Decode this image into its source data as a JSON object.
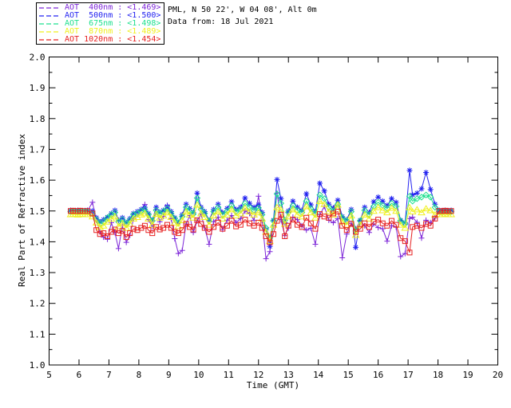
{
  "header": {
    "line1": "PML, N 50 22', W 04 08', Alt 0m",
    "line2": "Data from: 18 Jul 2021"
  },
  "colors": {
    "axis": "#000000",
    "background": "#ffffff",
    "aot400": "#7d26d8",
    "aot500": "#2323f0",
    "aot675": "#1fe08f",
    "aot870": "#f0f01e",
    "aot1020": "#e62020"
  },
  "chart_data": {
    "type": "line",
    "title": "",
    "xlabel": "Time (GMT)",
    "ylabel": "Real Part of Refractive index",
    "xlim": [
      5,
      20
    ],
    "ylim": [
      1.0,
      2.0
    ],
    "x_tick_labels": [
      "5",
      "6",
      "7",
      "8",
      "9",
      "10",
      "11",
      "12",
      "13",
      "14",
      "15",
      "16",
      "17",
      "18",
      "19",
      "20"
    ],
    "x_ticks": [
      5,
      6,
      7,
      8,
      9,
      10,
      11,
      12,
      13,
      14,
      15,
      16,
      17,
      18,
      19,
      20
    ],
    "y_tick_labels": [
      "1.0",
      "1.1",
      "1.2",
      "1.3",
      "1.4",
      "1.5",
      "1.6",
      "1.7",
      "1.8",
      "1.9",
      "2.0"
    ],
    "y_ticks": [
      1.0,
      1.1,
      1.2,
      1.3,
      1.4,
      1.5,
      1.6,
      1.7,
      1.8,
      1.9,
      2.0
    ],
    "y_minor_step": 0.05,
    "grid": false,
    "legend_position": "top-left-outside",
    "x_name": "time_gmt_hours",
    "t": [
      5.72,
      5.8,
      5.88,
      5.96,
      6.04,
      6.12,
      6.2,
      6.28,
      6.45,
      6.58,
      6.7,
      6.82,
      6.95,
      7.08,
      7.2,
      7.32,
      7.45,
      7.58,
      7.7,
      7.82,
      7.95,
      8.08,
      8.2,
      8.32,
      8.45,
      8.58,
      8.7,
      8.82,
      8.95,
      9.08,
      9.2,
      9.32,
      9.45,
      9.58,
      9.7,
      9.82,
      9.95,
      10.08,
      10.2,
      10.35,
      10.5,
      10.65,
      10.8,
      10.95,
      11.1,
      11.25,
      11.4,
      11.55,
      11.7,
      11.85,
      12.0,
      12.12,
      12.25,
      12.38,
      12.5,
      12.62,
      12.75,
      12.88,
      13.0,
      13.15,
      13.3,
      13.45,
      13.6,
      13.75,
      13.9,
      14.05,
      14.2,
      14.35,
      14.5,
      14.65,
      14.8,
      14.95,
      15.1,
      15.25,
      15.4,
      15.55,
      15.7,
      15.85,
      16.0,
      16.15,
      16.3,
      16.45,
      16.6,
      16.75,
      16.9,
      17.05,
      17.15,
      17.3,
      17.45,
      17.6,
      17.75,
      17.9,
      18.04,
      18.14,
      18.24,
      18.34,
      18.44
    ],
    "series": [
      {
        "name": "AOT 400nm",
        "legend_label": "AOT  400nm : <1.469>",
        "mean_refractive_index": "1.469",
        "color": "#7d26d8",
        "marker": "plus",
        "values": [
          1.5,
          1.5,
          1.501,
          1.499,
          1.5,
          1.5,
          1.499,
          1.5,
          1.528,
          1.47,
          1.432,
          1.415,
          1.408,
          1.462,
          1.43,
          1.378,
          1.452,
          1.398,
          1.421,
          1.475,
          1.488,
          1.505,
          1.521,
          1.472,
          1.448,
          1.505,
          1.465,
          1.483,
          1.518,
          1.475,
          1.41,
          1.362,
          1.372,
          1.458,
          1.485,
          1.43,
          1.468,
          1.49,
          1.445,
          1.392,
          1.465,
          1.48,
          1.44,
          1.47,
          1.485,
          1.462,
          1.475,
          1.5,
          1.492,
          1.47,
          1.548,
          1.47,
          1.345,
          1.368,
          1.452,
          1.558,
          1.472,
          1.42,
          1.445,
          1.48,
          1.472,
          1.452,
          1.438,
          1.444,
          1.392,
          1.488,
          1.515,
          1.47,
          1.462,
          1.475,
          1.348,
          1.425,
          1.46,
          1.442,
          1.468,
          1.452,
          1.43,
          1.458,
          1.446,
          1.442,
          1.402,
          1.452,
          1.448,
          1.352,
          1.362,
          1.475,
          1.48,
          1.463,
          1.412,
          1.47,
          1.462,
          1.478,
          1.5,
          1.5,
          1.5,
          1.5,
          1.5
        ]
      },
      {
        "name": "AOT 500nm",
        "legend_label": "AOT  500nm : <1.500>",
        "mean_refractive_index": "1.500",
        "color": "#2323f0",
        "marker": "asterisk",
        "values": [
          1.502,
          1.501,
          1.5,
          1.502,
          1.501,
          1.5,
          1.501,
          1.502,
          1.5,
          1.478,
          1.465,
          1.472,
          1.48,
          1.492,
          1.502,
          1.47,
          1.478,
          1.462,
          1.475,
          1.492,
          1.498,
          1.505,
          1.512,
          1.492,
          1.47,
          1.512,
          1.496,
          1.502,
          1.515,
          1.498,
          1.478,
          1.462,
          1.488,
          1.522,
          1.508,
          1.495,
          1.558,
          1.512,
          1.498,
          1.47,
          1.505,
          1.522,
          1.495,
          1.508,
          1.53,
          1.505,
          1.512,
          1.542,
          1.525,
          1.512,
          1.52,
          1.495,
          1.44,
          1.385,
          1.47,
          1.602,
          1.54,
          1.462,
          1.5,
          1.532,
          1.512,
          1.502,
          1.556,
          1.52,
          1.498,
          1.59,
          1.565,
          1.522,
          1.51,
          1.535,
          1.482,
          1.472,
          1.505,
          1.382,
          1.47,
          1.512,
          1.495,
          1.53,
          1.545,
          1.532,
          1.518,
          1.54,
          1.528,
          1.47,
          1.462,
          1.632,
          1.552,
          1.558,
          1.572,
          1.625,
          1.57,
          1.522,
          1.502,
          1.501,
          1.502,
          1.501,
          1.502
        ]
      },
      {
        "name": "AOT 675nm",
        "legend_label": "AOT  675nm : <1.498>",
        "mean_refractive_index": "1.498",
        "color": "#1fe08f",
        "marker": "diamond",
        "values": [
          1.498,
          1.499,
          1.498,
          1.497,
          1.498,
          1.499,
          1.498,
          1.498,
          1.492,
          1.472,
          1.458,
          1.465,
          1.478,
          1.488,
          1.495,
          1.465,
          1.472,
          1.458,
          1.47,
          1.488,
          1.492,
          1.5,
          1.505,
          1.488,
          1.468,
          1.502,
          1.49,
          1.498,
          1.508,
          1.492,
          1.475,
          1.462,
          1.482,
          1.512,
          1.5,
          1.49,
          1.542,
          1.505,
          1.492,
          1.468,
          1.498,
          1.512,
          1.488,
          1.5,
          1.518,
          1.498,
          1.505,
          1.525,
          1.512,
          1.502,
          1.51,
          1.488,
          1.445,
          1.412,
          1.468,
          1.555,
          1.525,
          1.47,
          1.495,
          1.518,
          1.502,
          1.495,
          1.532,
          1.508,
          1.492,
          1.552,
          1.54,
          1.512,
          1.5,
          1.522,
          1.478,
          1.468,
          1.498,
          1.435,
          1.468,
          1.502,
          1.488,
          1.515,
          1.528,
          1.518,
          1.508,
          1.525,
          1.515,
          1.468,
          1.458,
          1.548,
          1.532,
          1.54,
          1.545,
          1.552,
          1.545,
          1.512,
          1.498,
          1.498,
          1.499,
          1.498,
          1.498
        ]
      },
      {
        "name": "AOT 870nm",
        "legend_label": "AOT  870nm : <1.489>",
        "mean_refractive_index": "1.489",
        "color": "#f0f01e",
        "marker": "triangle",
        "values": [
          1.489,
          1.49,
          1.489,
          1.488,
          1.489,
          1.49,
          1.489,
          1.489,
          1.482,
          1.462,
          1.448,
          1.452,
          1.465,
          1.475,
          1.482,
          1.45,
          1.46,
          1.445,
          1.458,
          1.475,
          1.48,
          1.488,
          1.492,
          1.475,
          1.455,
          1.49,
          1.478,
          1.485,
          1.495,
          1.48,
          1.462,
          1.45,
          1.47,
          1.498,
          1.488,
          1.478,
          1.52,
          1.492,
          1.48,
          1.455,
          1.485,
          1.498,
          1.475,
          1.488,
          1.505,
          1.485,
          1.492,
          1.51,
          1.498,
          1.488,
          1.495,
          1.475,
          1.432,
          1.402,
          1.455,
          1.512,
          1.505,
          1.458,
          1.482,
          1.505,
          1.488,
          1.482,
          1.515,
          1.495,
          1.478,
          1.532,
          1.522,
          1.498,
          1.488,
          1.52,
          1.465,
          1.455,
          1.485,
          1.422,
          1.455,
          1.488,
          1.475,
          1.5,
          1.512,
          1.502,
          1.495,
          1.51,
          1.5,
          1.455,
          1.445,
          1.512,
          1.498,
          1.505,
          1.495,
          1.508,
          1.502,
          1.488,
          1.489,
          1.489,
          1.49,
          1.489,
          1.489
        ]
      },
      {
        "name": "AOT 1020nm",
        "legend_label": "AOT 1020nm : <1.454>",
        "mean_refractive_index": "1.454",
        "color": "#e62020",
        "marker": "square",
        "values": [
          1.5,
          1.501,
          1.5,
          1.5,
          1.501,
          1.5,
          1.5,
          1.5,
          1.492,
          1.438,
          1.425,
          1.428,
          1.418,
          1.432,
          1.44,
          1.428,
          1.435,
          1.415,
          1.428,
          1.442,
          1.438,
          1.445,
          1.452,
          1.438,
          1.428,
          1.448,
          1.44,
          1.445,
          1.455,
          1.445,
          1.432,
          1.428,
          1.438,
          1.458,
          1.448,
          1.44,
          1.47,
          1.458,
          1.445,
          1.432,
          1.448,
          1.462,
          1.442,
          1.452,
          1.468,
          1.45,
          1.455,
          1.472,
          1.46,
          1.452,
          1.462,
          1.445,
          1.418,
          1.398,
          1.425,
          1.468,
          1.488,
          1.418,
          1.452,
          1.472,
          1.455,
          1.448,
          1.478,
          1.46,
          1.442,
          1.49,
          1.482,
          1.478,
          1.492,
          1.498,
          1.452,
          1.438,
          1.458,
          1.432,
          1.442,
          1.46,
          1.448,
          1.465,
          1.472,
          1.46,
          1.452,
          1.468,
          1.455,
          1.412,
          1.402,
          1.365,
          1.448,
          1.452,
          1.445,
          1.458,
          1.452,
          1.475,
          1.5,
          1.5,
          1.501,
          1.5,
          1.5
        ]
      }
    ]
  }
}
